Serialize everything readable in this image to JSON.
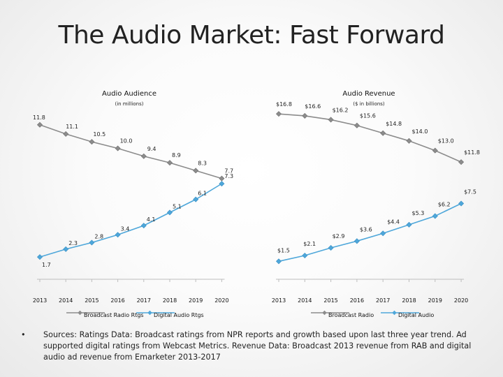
{
  "slide": {
    "title": "The Audio Market: Fast Forward",
    "footnote_bullet": "•",
    "footnote": "Sources: Ratings Data: Broadcast ratings from NPR reports and growth based upon last three year trend.  Ad supported digital ratings from Webcast Metrics. Revenue Data:  Broadcast 2013 revenue from RAB and digital audio ad revenue from  Emarketer 2013-2017"
  },
  "chart_data": [
    {
      "type": "line",
      "title": "Audio Audience",
      "subtitle": "(in millions)",
      "categories": [
        "2013",
        "2014",
        "2015",
        "2016",
        "2017",
        "2018",
        "2019",
        "2020"
      ],
      "series": [
        {
          "name": "Broadcast Radio Rtgs",
          "values": [
            11.8,
            11.1,
            10.5,
            10.0,
            9.4,
            8.9,
            8.3,
            7.7
          ],
          "labels": [
            "11.8",
            "11.1",
            "10.5",
            "10.0",
            "9.4",
            "8.9",
            "8.3",
            "7.7"
          ],
          "color": "#8c8c8c",
          "marker": "diamond"
        },
        {
          "name": "Digital Audio Rtgs",
          "values": [
            1.7,
            2.3,
            2.8,
            3.4,
            4.1,
            5.1,
            6.1,
            7.3
          ],
          "labels": [
            "1.7",
            "2.3",
            "2.8",
            "3.4",
            "4.1",
            "5.1",
            "6.1",
            "7.3"
          ],
          "color": "#4ea7da",
          "marker": "diamond"
        }
      ],
      "ylim": [
        0,
        12.5
      ],
      "grid": false,
      "legend": "bottom"
    },
    {
      "type": "line",
      "title": "Audio Revenue",
      "subtitle": "($ in billions)",
      "categories": [
        "2013",
        "2014",
        "2015",
        "2016",
        "2017",
        "2018",
        "2019",
        "2020"
      ],
      "series": [
        {
          "name": "Broadcast Radio",
          "values": [
            16.8,
            16.6,
            16.2,
            15.6,
            14.8,
            14.0,
            13.0,
            11.8
          ],
          "labels": [
            "$16.8",
            "$16.6",
            "$16.2",
            "$15.6",
            "$14.8",
            "$14.0",
            "$13.0",
            "$11.8"
          ],
          "color": "#8c8c8c",
          "marker": "diamond"
        },
        {
          "name": "Digital Audio",
          "values": [
            1.5,
            2.1,
            2.9,
            3.6,
            4.4,
            5.3,
            6.2,
            7.5
          ],
          "labels": [
            "$1.5",
            "$2.1",
            "$2.9",
            "$3.6",
            "$4.4",
            "$5.3",
            "$6.2",
            "$7.5"
          ],
          "color": "#4ea7da",
          "marker": "diamond"
        }
      ],
      "ylim": [
        0,
        17.5
      ],
      "grid": false,
      "legend": "bottom"
    }
  ]
}
